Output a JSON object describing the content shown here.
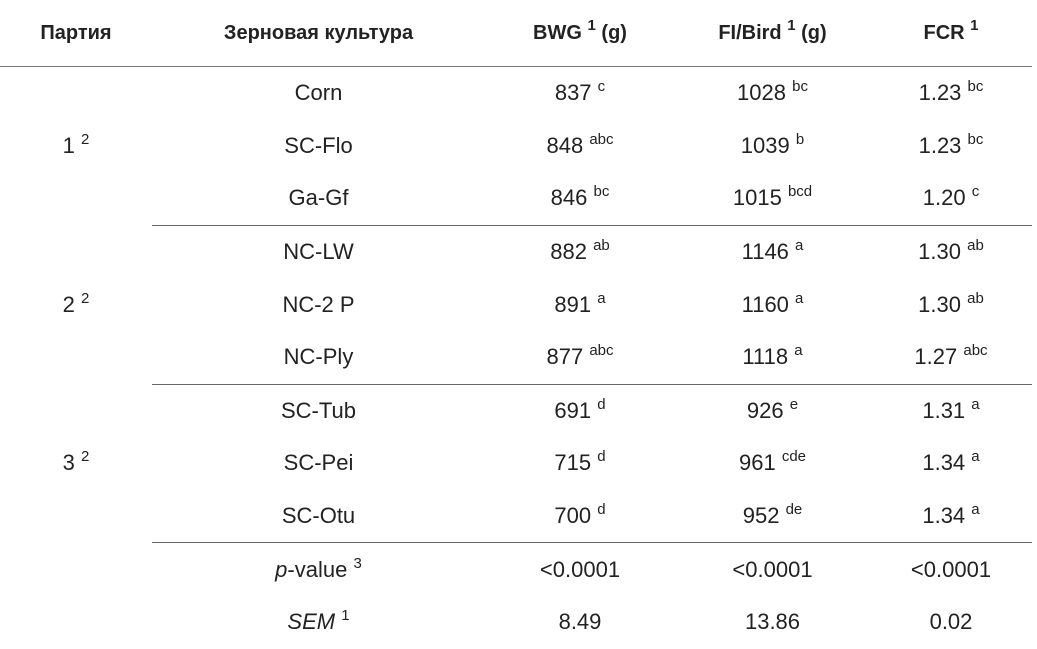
{
  "table": {
    "header": [
      {
        "text": "Партия"
      },
      {
        "text": "Зерновая культура"
      },
      {
        "text": "BWG",
        "sup": "1",
        "suffix": "(g)"
      },
      {
        "text": "FI/Bird",
        "sup": "1",
        "suffix": "(g)"
      },
      {
        "text": "FCR",
        "sup": "1"
      }
    ],
    "groups": [
      {
        "label": "1",
        "sup": "2",
        "rows": [
          {
            "crop": "Corn",
            "cells": [
              {
                "value": "837",
                "sup": "c"
              },
              {
                "value": "1028",
                "sup": "bc"
              },
              {
                "value": "1.23",
                "sup": "bc"
              }
            ]
          },
          {
            "crop": "SC-Flo",
            "cells": [
              {
                "value": "848",
                "sup": "abc"
              },
              {
                "value": "1039",
                "sup": "b"
              },
              {
                "value": "1.23",
                "sup": "bc"
              }
            ]
          },
          {
            "crop": "Ga-Gf",
            "cells": [
              {
                "value": "846",
                "sup": "bc"
              },
              {
                "value": "1015",
                "sup": "bcd"
              },
              {
                "value": "1.20",
                "sup": "c"
              }
            ]
          }
        ]
      },
      {
        "label": "2",
        "sup": "2",
        "rows": [
          {
            "crop": "NC-LW",
            "cells": [
              {
                "value": "882",
                "sup": "ab"
              },
              {
                "value": "1146",
                "sup": "a"
              },
              {
                "value": "1.30",
                "sup": "ab"
              }
            ]
          },
          {
            "crop": "NC-2 P",
            "cells": [
              {
                "value": "891",
                "sup": "a"
              },
              {
                "value": "1160",
                "sup": "a"
              },
              {
                "value": "1.30",
                "sup": "ab"
              }
            ]
          },
          {
            "crop": "NC-Ply",
            "cells": [
              {
                "value": "877",
                "sup": "abc"
              },
              {
                "value": "1118",
                "sup": "a"
              },
              {
                "value": "1.27",
                "sup": "abc"
              }
            ]
          }
        ]
      },
      {
        "label": "3",
        "sup": "2",
        "rows": [
          {
            "crop": "SC-Tub",
            "cells": [
              {
                "value": "691",
                "sup": "d"
              },
              {
                "value": "926",
                "sup": "e"
              },
              {
                "value": "1.31",
                "sup": "a"
              }
            ]
          },
          {
            "crop": "SC-Pei",
            "cells": [
              {
                "value": "715",
                "sup": "d"
              },
              {
                "value": "961",
                "sup": "cde"
              },
              {
                "value": "1.34",
                "sup": "a"
              }
            ]
          },
          {
            "crop": "SC-Otu",
            "cells": [
              {
                "value": "700",
                "sup": "d"
              },
              {
                "value": "952",
                "sup": "de"
              },
              {
                "value": "1.34",
                "sup": "a"
              }
            ]
          }
        ]
      }
    ],
    "footer": [
      {
        "label": {
          "italic": "p",
          "text": "-value",
          "sup": "3"
        },
        "values": [
          "<0.0001",
          "<0.0001",
          "<0.0001"
        ]
      },
      {
        "label": {
          "italic": "SEM",
          "sup": "1"
        },
        "values": [
          "8.49",
          "13.86",
          "0.02"
        ]
      }
    ]
  }
}
